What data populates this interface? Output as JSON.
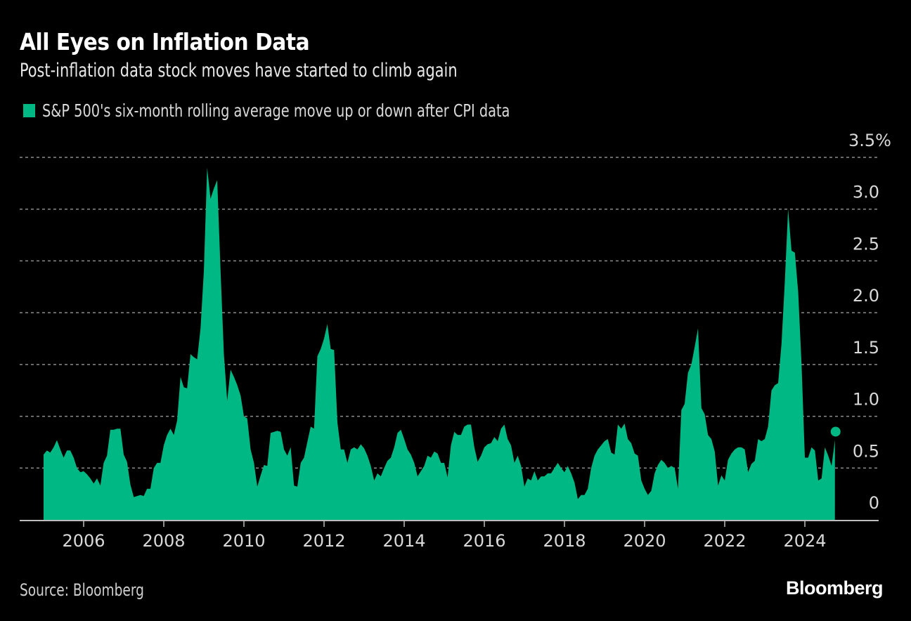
{
  "header": {
    "title": "All Eyes on Inflation Data",
    "subtitle": "Post-inflation data stock moves have started to climb again"
  },
  "legend": {
    "label": "S&P 500's six-month rolling average move up or down after CPI data",
    "color": "#00b883"
  },
  "footer": {
    "source": "Source: Bloomberg",
    "brand": "Bloomberg"
  },
  "chart_data": {
    "type": "area",
    "title": "All Eyes on Inflation Data",
    "subtitle": "Post-inflation data stock moves have started to climb again",
    "xlabel": "",
    "ylabel": "",
    "y_unit": "%",
    "ylim": [
      0,
      3.5
    ],
    "xlim": [
      2004.0,
      2026.0
    ],
    "y_ticks": [
      0,
      0.5,
      1.0,
      1.5,
      2.0,
      2.5,
      3.0,
      3.5
    ],
    "y_tick_labels": [
      "0",
      "0.5",
      "1.0",
      "1.5",
      "2.0",
      "2.5",
      "3.0",
      "3.5%"
    ],
    "x_ticks": [
      2006,
      2008,
      2010,
      2012,
      2014,
      2016,
      2018,
      2020,
      2022,
      2024
    ],
    "x_tick_labels": [
      "2006",
      "2008",
      "2010",
      "2012",
      "2014",
      "2016",
      "2018",
      "2020",
      "2022",
      "2024"
    ],
    "grid": true,
    "legend_position": "top-left",
    "series": [
      {
        "name": "S&P 500's six-month rolling average move up or down after CPI data",
        "color": "#00b883",
        "start": "2005-01",
        "frequency": "monthly",
        "last_point_marker": true,
        "values": [
          0.63,
          0.67,
          0.65,
          0.7,
          0.77,
          0.68,
          0.6,
          0.67,
          0.67,
          0.6,
          0.5,
          0.46,
          0.47,
          0.44,
          0.4,
          0.35,
          0.4,
          0.33,
          0.55,
          0.62,
          0.87,
          0.87,
          0.88,
          0.88,
          0.63,
          0.56,
          0.34,
          0.22,
          0.23,
          0.24,
          0.23,
          0.3,
          0.3,
          0.5,
          0.55,
          0.55,
          0.72,
          0.82,
          0.88,
          0.82,
          0.96,
          1.38,
          1.28,
          1.27,
          1.6,
          1.57,
          1.55,
          1.85,
          2.4,
          3.4,
          3.1,
          3.2,
          3.28,
          2.4,
          1.6,
          1.15,
          1.45,
          1.38,
          1.3,
          1.2,
          1.0,
          0.98,
          0.68,
          0.55,
          0.32,
          0.43,
          0.53,
          0.52,
          0.84,
          0.85,
          0.86,
          0.85,
          0.68,
          0.62,
          0.7,
          0.33,
          0.32,
          0.55,
          0.6,
          0.75,
          0.9,
          0.88,
          1.58,
          1.65,
          1.75,
          1.89,
          1.65,
          1.64,
          0.94,
          0.68,
          0.68,
          0.55,
          0.68,
          0.7,
          0.68,
          0.73,
          0.69,
          0.62,
          0.52,
          0.38,
          0.45,
          0.42,
          0.5,
          0.57,
          0.6,
          0.7,
          0.84,
          0.87,
          0.78,
          0.68,
          0.63,
          0.55,
          0.42,
          0.47,
          0.52,
          0.62,
          0.6,
          0.66,
          0.64,
          0.55,
          0.55,
          0.41,
          0.72,
          0.85,
          0.82,
          0.82,
          0.9,
          0.92,
          0.92,
          0.7,
          0.56,
          0.62,
          0.7,
          0.73,
          0.74,
          0.8,
          0.76,
          0.88,
          0.92,
          0.78,
          0.72,
          0.55,
          0.62,
          0.52,
          0.32,
          0.4,
          0.38,
          0.47,
          0.38,
          0.42,
          0.42,
          0.45,
          0.45,
          0.5,
          0.55,
          0.5,
          0.46,
          0.52,
          0.45,
          0.36,
          0.2,
          0.24,
          0.24,
          0.3,
          0.5,
          0.62,
          0.68,
          0.72,
          0.76,
          0.78,
          0.65,
          0.63,
          0.92,
          0.88,
          0.93,
          0.78,
          0.74,
          0.64,
          0.62,
          0.38,
          0.3,
          0.24,
          0.28,
          0.45,
          0.53,
          0.58,
          0.55,
          0.5,
          0.52,
          0.5,
          0.3,
          1.06,
          1.12,
          1.42,
          1.5,
          1.67,
          1.85,
          1.08,
          1.02,
          0.82,
          0.78,
          0.66,
          0.33,
          0.43,
          0.38,
          0.58,
          0.64,
          0.68,
          0.7,
          0.7,
          0.68,
          0.46,
          0.54,
          0.57,
          0.78,
          0.76,
          0.78,
          0.9,
          1.25,
          1.3,
          1.32,
          1.7,
          2.3,
          3.0,
          2.6,
          2.58,
          2.2,
          1.5,
          0.6,
          0.6,
          0.7,
          0.67,
          0.38,
          0.4,
          0.7,
          0.62,
          0.52,
          0.77
        ]
      }
    ]
  }
}
